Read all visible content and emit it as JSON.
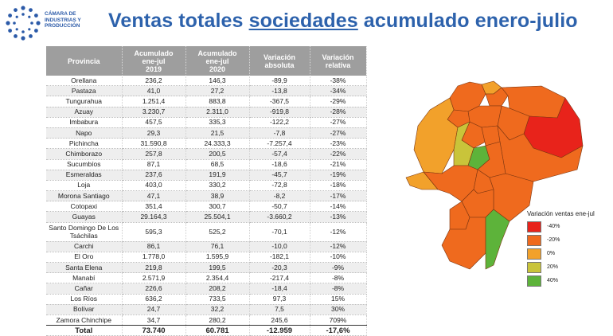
{
  "logo": {
    "line1": "CÁMARA DE",
    "line2": "INDUSTRIAS Y",
    "line3": "PRODUCCIÓN"
  },
  "title": {
    "part1": "Ventas totales ",
    "underlined": "sociedades",
    "part2": " acumulado enero-julio"
  },
  "table": {
    "headers": {
      "provincia": "Provincia",
      "c2019": [
        "Acumulado",
        "ene-jul",
        "2019"
      ],
      "c2020": [
        "Acumulado",
        "ene-jul",
        "2020"
      ],
      "abs": [
        "Variación",
        "absoluta"
      ],
      "rel": [
        "Variación",
        "relativa"
      ]
    },
    "rows": [
      [
        "Orellana",
        "236,2",
        "146,3",
        "-89,9",
        "-38%"
      ],
      [
        "Pastaza",
        "41,0",
        "27,2",
        "-13,8",
        "-34%"
      ],
      [
        "Tungurahua",
        "1.251,4",
        "883,8",
        "-367,5",
        "-29%"
      ],
      [
        "Azuay",
        "3.230,7",
        "2.311,0",
        "-919,8",
        "-28%"
      ],
      [
        "Imbabura",
        "457,5",
        "335,3",
        "-122,2",
        "-27%"
      ],
      [
        "Napo",
        "29,3",
        "21,5",
        "-7,8",
        "-27%"
      ],
      [
        "Pichincha",
        "31.590,8",
        "24.333,3",
        "-7.257,4",
        "-23%"
      ],
      [
        "Chimborazo",
        "257,8",
        "200,5",
        "-57,4",
        "-22%"
      ],
      [
        "Sucumbíos",
        "87,1",
        "68,5",
        "-18,6",
        "-21%"
      ],
      [
        "Esmeraldas",
        "237,6",
        "191,9",
        "-45,7",
        "-19%"
      ],
      [
        "Loja",
        "403,0",
        "330,2",
        "-72,8",
        "-18%"
      ],
      [
        "Morona Santiago",
        "47,1",
        "38,9",
        "-8,2",
        "-17%"
      ],
      [
        "Cotopaxi",
        "351,4",
        "300,7",
        "-50,7",
        "-14%"
      ],
      [
        "Guayas",
        "29.164,3",
        "25.504,1",
        "-3.660,2",
        "-13%"
      ],
      [
        "Santo Domingo De Los Tsáchilas",
        "595,3",
        "525,2",
        "-70,1",
        "-12%"
      ],
      [
        "Carchi",
        "86,1",
        "76,1",
        "-10,0",
        "-12%"
      ],
      [
        "El Oro",
        "1.778,0",
        "1.595,9",
        "-182,1",
        "-10%"
      ],
      [
        "Santa Elena",
        "219,8",
        "199,5",
        "-20,3",
        "-9%"
      ],
      [
        "Manabí",
        "2.571,9",
        "2.354,4",
        "-217,4",
        "-8%"
      ],
      [
        "Cañar",
        "226,6",
        "208,2",
        "-18,4",
        "-8%"
      ],
      [
        "Los Ríos",
        "636,2",
        "733,5",
        "97,3",
        "15%"
      ],
      [
        "Bolívar",
        "24,7",
        "32,2",
        "7,5",
        "30%"
      ],
      [
        "Zamora Chinchipe",
        "34,7",
        "280,2",
        "245,6",
        "709%"
      ]
    ],
    "total": [
      "Total",
      "73.740",
      "60.781",
      "-12.959",
      "-17,6%"
    ]
  },
  "legend": {
    "title": "Variación ventas ene-jul",
    "items": [
      {
        "label": "-40%",
        "color": "#e8231b"
      },
      {
        "label": "-20%",
        "color": "#ef6a1e"
      },
      {
        "label": "0%",
        "color": "#f2a12b"
      },
      {
        "label": "20%",
        "color": "#c9c43a"
      },
      {
        "label": "40%",
        "color": "#5db33a"
      }
    ]
  },
  "colors": {
    "title": "#2d62ac",
    "header_bg": "#9e9e9e"
  }
}
